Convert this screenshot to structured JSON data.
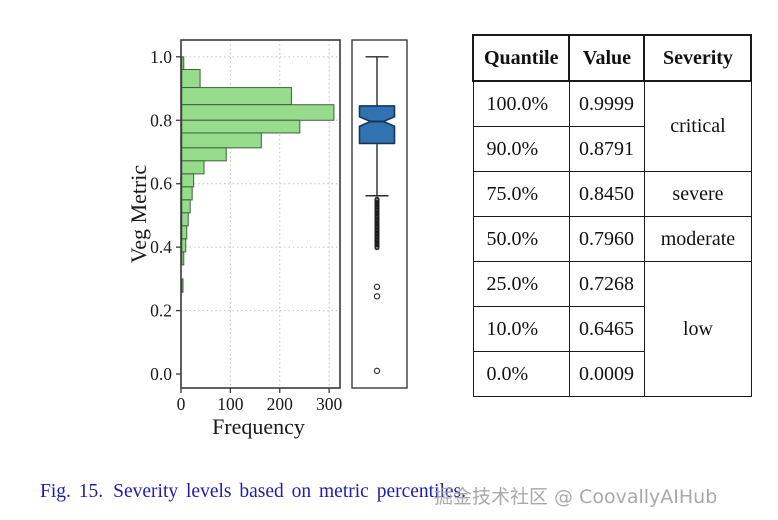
{
  "figure": {
    "caption_label": "Fig. 15.",
    "caption_text": "Severity levels based on metric percentiles.",
    "watermark": "掘金技术社区 @ CoovallyAIHub"
  },
  "table": {
    "headers": [
      "Quantile",
      "Value",
      "Severity"
    ],
    "rows": [
      {
        "quantile": "100.0%",
        "value": "0.9999"
      },
      {
        "quantile": "90.0%",
        "value": "0.8791"
      },
      {
        "quantile": "75.0%",
        "value": "0.8450"
      },
      {
        "quantile": "50.0%",
        "value": "0.7960"
      },
      {
        "quantile": "25.0%",
        "value": "0.7268"
      },
      {
        "quantile": "10.0%",
        "value": "0.6465"
      },
      {
        "quantile": "0.0%",
        "value": "0.0009"
      }
    ],
    "severity_groups": [
      {
        "label": "critical",
        "span": 2
      },
      {
        "label": "severe",
        "span": 1
      },
      {
        "label": "moderate",
        "span": 1
      },
      {
        "label": "low",
        "span": 3
      }
    ]
  },
  "chart_data": [
    {
      "type": "bar",
      "subtype": "horizontal_histogram",
      "title": "",
      "xlabel": "Frequency",
      "ylabel": "Veg Metric",
      "xlim": [
        0,
        322
      ],
      "ylim": [
        -0.044,
        1.053
      ],
      "grid": true,
      "xtick_values": [
        0,
        100,
        200,
        300
      ],
      "xtick_labels": [
        "0",
        "100",
        "200",
        "300"
      ],
      "ytick_values": [
        0.0,
        0.2,
        0.4,
        0.6,
        0.8,
        1.0
      ],
      "ytick_labels": [
        "0.0",
        "0.2",
        "0.4",
        "0.6",
        "0.8",
        "1.0"
      ],
      "bins": [
        {
          "lo": 0.96,
          "hi": 1.0,
          "freq": 4
        },
        {
          "lo": 0.903,
          "hi": 0.96,
          "freq": 37
        },
        {
          "lo": 0.849,
          "hi": 0.903,
          "freq": 222
        },
        {
          "lo": 0.8,
          "hi": 0.849,
          "freq": 308
        },
        {
          "lo": 0.76,
          "hi": 0.8,
          "freq": 239
        },
        {
          "lo": 0.713,
          "hi": 0.76,
          "freq": 161
        },
        {
          "lo": 0.672,
          "hi": 0.713,
          "freq": 90
        },
        {
          "lo": 0.631,
          "hi": 0.672,
          "freq": 45
        },
        {
          "lo": 0.59,
          "hi": 0.631,
          "freq": 24
        },
        {
          "lo": 0.549,
          "hi": 0.59,
          "freq": 21
        },
        {
          "lo": 0.508,
          "hi": 0.549,
          "freq": 17
        },
        {
          "lo": 0.467,
          "hi": 0.508,
          "freq": 13
        },
        {
          "lo": 0.426,
          "hi": 0.467,
          "freq": 10
        },
        {
          "lo": 0.385,
          "hi": 0.426,
          "freq": 8
        },
        {
          "lo": 0.344,
          "hi": 0.385,
          "freq": 4
        },
        {
          "lo": 0.258,
          "hi": 0.3,
          "freq": 2
        }
      ]
    },
    {
      "type": "boxplot",
      "orientation": "vertical",
      "notched": true,
      "ylim": [
        -0.044,
        1.053
      ],
      "stats": {
        "maximum": 0.9999,
        "q3": 0.845,
        "median": 0.796,
        "q1": 0.7268,
        "lower_whisker": 0.562,
        "notch_high": 0.811,
        "notch_low": 0.781
      },
      "outlier_band": {
        "from": 0.398,
        "to": 0.555,
        "step": 0.0045
      },
      "outliers": [
        0.275,
        0.245,
        0.01
      ]
    }
  ],
  "colors": {
    "caption_blue": "#1c1cb0",
    "watermark_gray": "#9fa3a7",
    "hist_bar_fill": "#97db8d",
    "hist_bar_edge": "#3c633c",
    "box_fill": "#3173b1",
    "box_edge": "#16365c",
    "axis": "#3a3a3a",
    "grid": "#bfbfbf",
    "tick_text": "#1a1a1a"
  }
}
